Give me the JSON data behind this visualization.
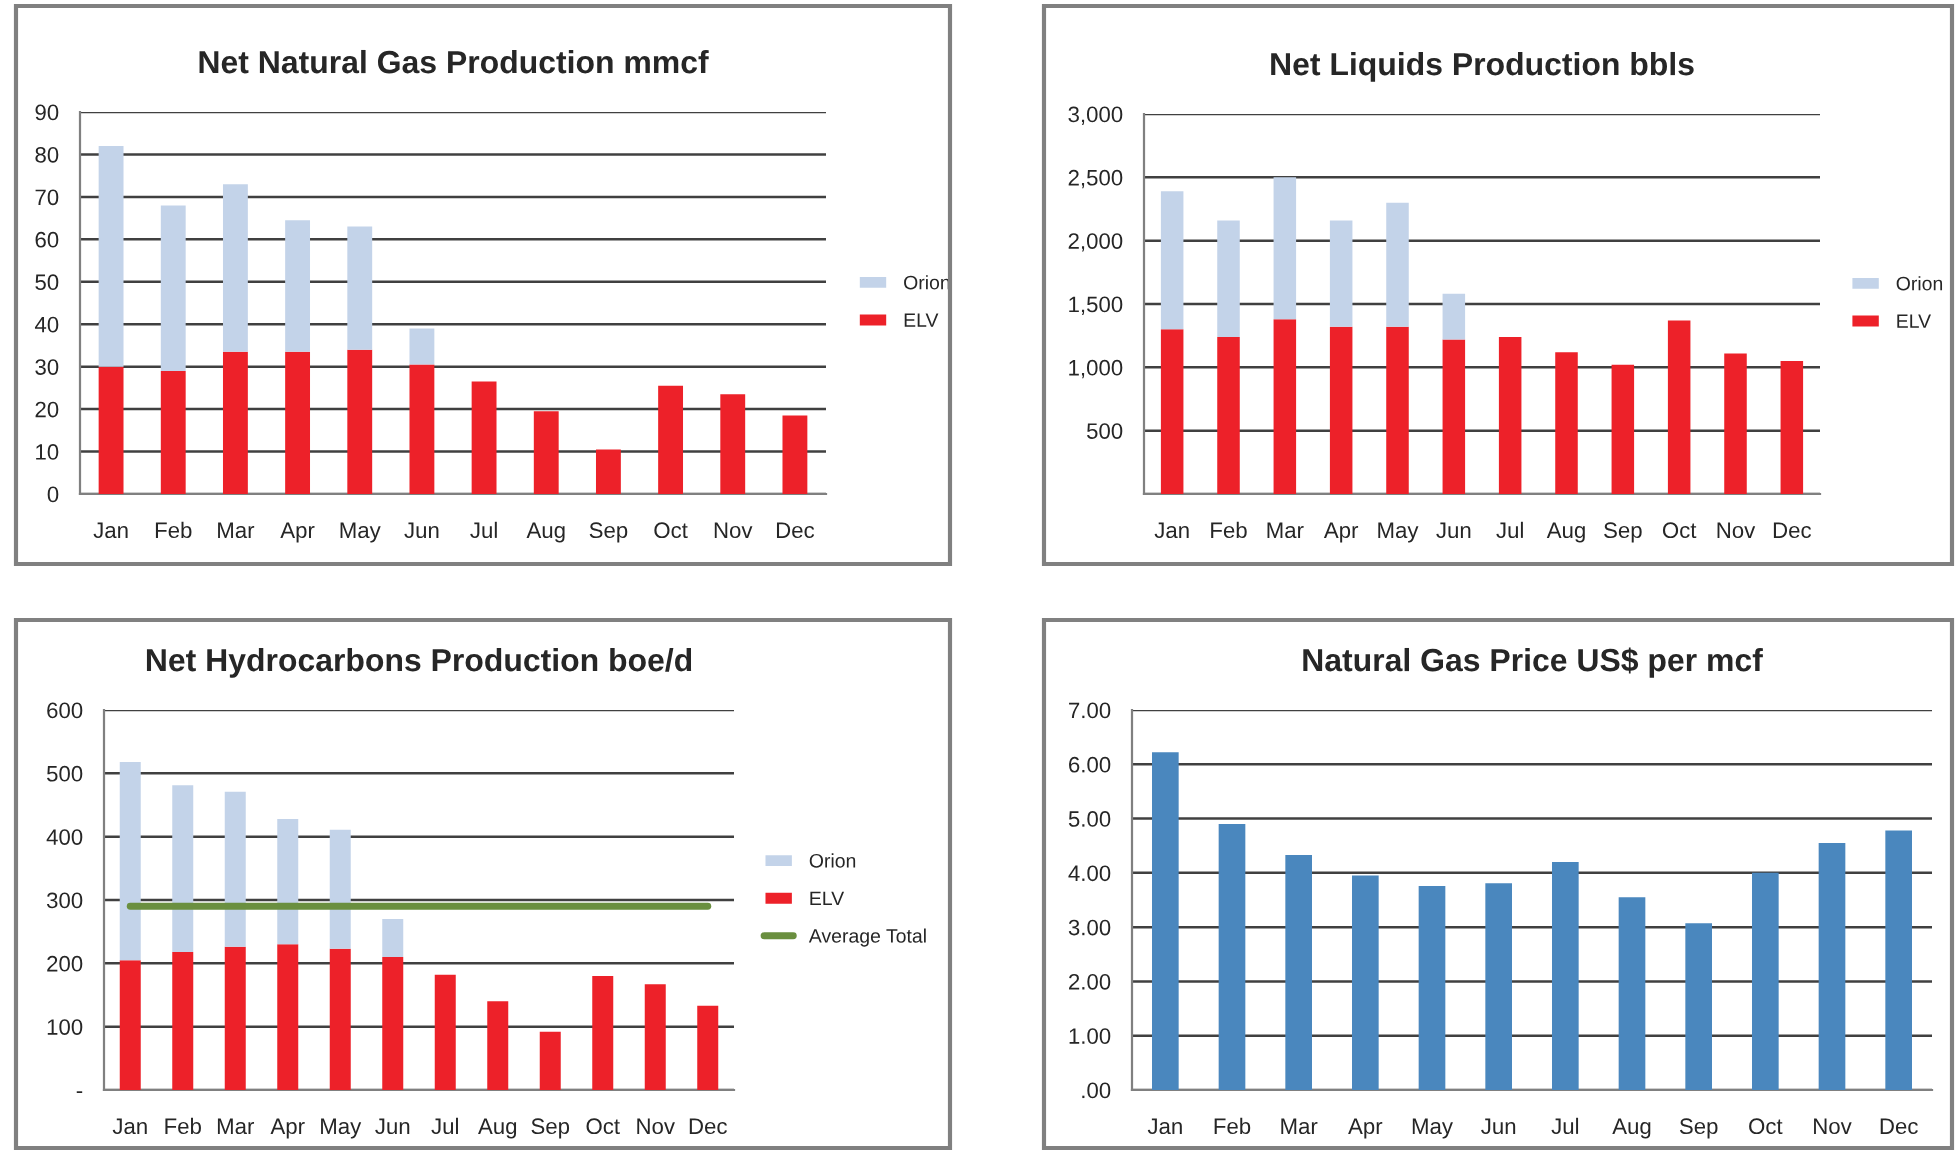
{
  "chart_data": [
    {
      "type": "bar",
      "title": "Net Natural Gas Production mmcf",
      "stacked": true,
      "categories": [
        "Jan",
        "Feb",
        "Mar",
        "Apr",
        "May",
        "Jun",
        "Jul",
        "Aug",
        "Sep",
        "Oct",
        "Nov",
        "Dec"
      ],
      "series": [
        {
          "name": "ELV",
          "color": "#ed2129",
          "values": [
            30,
            29,
            33.5,
            33.5,
            34,
            30.5,
            26.5,
            19.5,
            10.5,
            25.5,
            23.5,
            18.5
          ]
        },
        {
          "name": "Orion",
          "color": "#c3d3e9",
          "values": [
            52,
            39,
            39.5,
            31,
            29,
            8.5,
            null,
            null,
            null,
            null,
            null,
            null
          ]
        }
      ],
      "ylim": [
        0,
        90
      ],
      "yticks": [
        0,
        10,
        20,
        30,
        40,
        50,
        60,
        70,
        80,
        90
      ],
      "grid": "y",
      "legend": "right"
    },
    {
      "type": "bar",
      "title": "Net Liquids Production bbls",
      "stacked": true,
      "categories": [
        "Jan",
        "Feb",
        "Mar",
        "Apr",
        "May",
        "Jun",
        "Jul",
        "Aug",
        "Sep",
        "Oct",
        "Nov",
        "Dec"
      ],
      "series": [
        {
          "name": "ELV",
          "color": "#ed2129",
          "values": [
            1300,
            1240,
            1380,
            1320,
            1320,
            1220,
            1240,
            1120,
            1020,
            1370,
            1110,
            1050
          ]
        },
        {
          "name": "Orion",
          "color": "#c3d3e9",
          "values": [
            1090,
            920,
            1120,
            840,
            980,
            360,
            null,
            null,
            null,
            null,
            null,
            null
          ]
        }
      ],
      "ylim": [
        0,
        3000
      ],
      "yticks": [
        {
          "value": 0,
          "label": null
        },
        {
          "value": 500,
          "label": "500"
        },
        {
          "value": 1000,
          "label": "1,000"
        },
        {
          "value": 1500,
          "label": "1,500"
        },
        {
          "value": 2000,
          "label": "2,000"
        },
        {
          "value": 2500,
          "label": "2,500"
        },
        {
          "value": 3000,
          "label": "3,000"
        }
      ],
      "grid": "y",
      "legend": "right"
    },
    {
      "type": "bar",
      "title": "Net Hydrocarbons Production boe/d",
      "stacked": true,
      "categories": [
        "Jan",
        "Feb",
        "Mar",
        "Apr",
        "May",
        "Jun",
        "Jul",
        "Aug",
        "Sep",
        "Oct",
        "Nov",
        "Dec"
      ],
      "series": [
        {
          "name": "ELV",
          "color": "#ed2129",
          "values": [
            205,
            218,
            226,
            230,
            223,
            210,
            182,
            140,
            92,
            180,
            167,
            133
          ]
        },
        {
          "name": "Orion",
          "color": "#c3d3e9",
          "values": [
            313,
            263,
            245,
            198,
            188,
            60,
            null,
            null,
            null,
            null,
            null,
            null
          ]
        },
        {
          "name": "Average Total",
          "type": "line",
          "color": "#6a8f3f",
          "values": [
            290,
            290,
            290,
            290,
            290,
            290,
            290,
            290,
            290,
            290,
            290,
            290
          ]
        }
      ],
      "ylim": [
        0,
        600
      ],
      "yticks": [
        {
          "value": 0,
          "label": "-"
        },
        {
          "value": 100,
          "label": "100"
        },
        {
          "value": 200,
          "label": "200"
        },
        {
          "value": 300,
          "label": "300"
        },
        {
          "value": 400,
          "label": "400"
        },
        {
          "value": 500,
          "label": "500"
        },
        {
          "value": 600,
          "label": "600"
        }
      ],
      "grid": "y",
      "legend": "right"
    },
    {
      "type": "bar",
      "title": "Natural Gas Price US$ per mcf",
      "categories": [
        "Jan",
        "Feb",
        "Mar",
        "Apr",
        "May",
        "Jun",
        "Jul",
        "Aug",
        "Sep",
        "Oct",
        "Nov",
        "Dec"
      ],
      "series": [
        {
          "color": "#4a87be",
          "values": [
            6.22,
            4.9,
            4.33,
            3.95,
            3.76,
            3.81,
            4.2,
            3.55,
            3.07,
            4.0,
            4.55,
            4.78
          ]
        }
      ],
      "ylim": [
        0,
        7
      ],
      "yticks": [
        {
          "value": 0,
          "label": ".00"
        },
        {
          "value": 1,
          "label": "1.00"
        },
        {
          "value": 2,
          "label": "2.00"
        },
        {
          "value": 3,
          "label": "3.00"
        },
        {
          "value": 4,
          "label": "4.00"
        },
        {
          "value": 5,
          "label": "5.00"
        },
        {
          "value": 6,
          "label": "6.00"
        },
        {
          "value": 7,
          "label": "7.00"
        }
      ],
      "grid": "y"
    }
  ]
}
